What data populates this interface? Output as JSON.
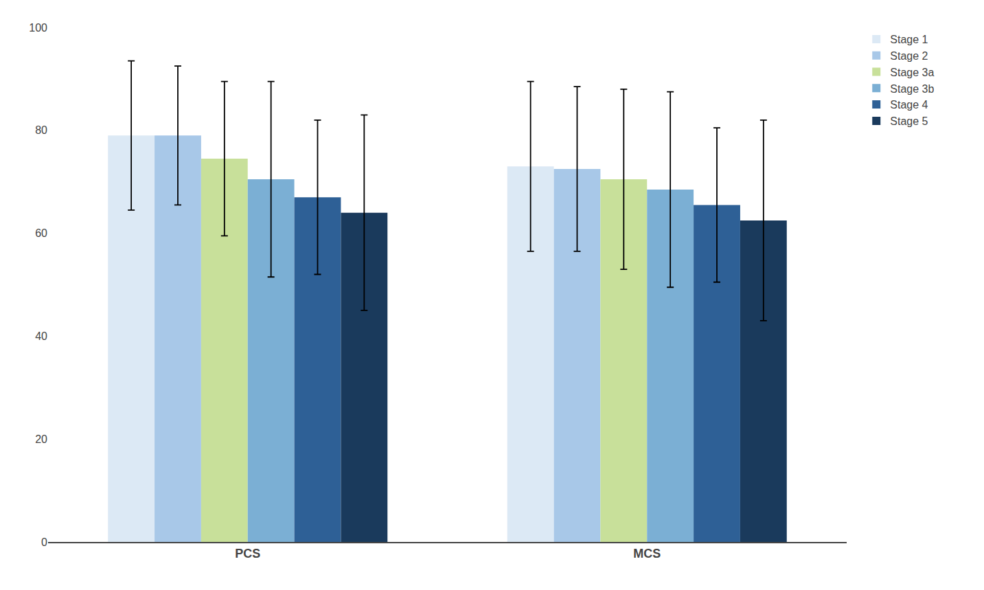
{
  "chart_data": {
    "type": "bar",
    "categories": [
      "PCS",
      "MCS"
    ],
    "series": [
      {
        "name": "Stage 1",
        "color": "#dce9f5",
        "values": [
          79.0,
          73.0
        ],
        "errors_upper": [
          14.5,
          16.5
        ],
        "errors_lower": [
          14.5,
          16.5
        ]
      },
      {
        "name": "Stage 2",
        "color": "#a8c8e8",
        "values": [
          79.0,
          72.5
        ],
        "errors_upper": [
          13.5,
          16.0
        ],
        "errors_lower": [
          13.5,
          16.0
        ]
      },
      {
        "name": "Stage 3a",
        "color": "#c8e09a",
        "values": [
          74.5,
          70.5
        ],
        "errors_upper": [
          15.0,
          17.5
        ],
        "errors_lower": [
          15.0,
          17.5
        ]
      },
      {
        "name": "Stage 3b",
        "color": "#7bafd4",
        "values": [
          70.5,
          68.5
        ],
        "errors_upper": [
          19.0,
          19.0
        ],
        "errors_lower": [
          19.0,
          19.0
        ]
      },
      {
        "name": "Stage 4",
        "color": "#2e6096",
        "values": [
          67.0,
          65.5
        ],
        "errors_upper": [
          15.0,
          15.0
        ],
        "errors_lower": [
          15.0,
          15.0
        ]
      },
      {
        "name": "Stage 5",
        "color": "#1a3a5c",
        "values": [
          64.0,
          62.5
        ],
        "errors_upper": [
          19.0,
          19.5
        ],
        "errors_lower": [
          19.0,
          19.5
        ]
      }
    ],
    "ylim": [
      0,
      100
    ],
    "yticks": [
      0,
      20,
      40,
      60,
      80,
      100
    ],
    "grid": false,
    "legend": "upper right"
  }
}
